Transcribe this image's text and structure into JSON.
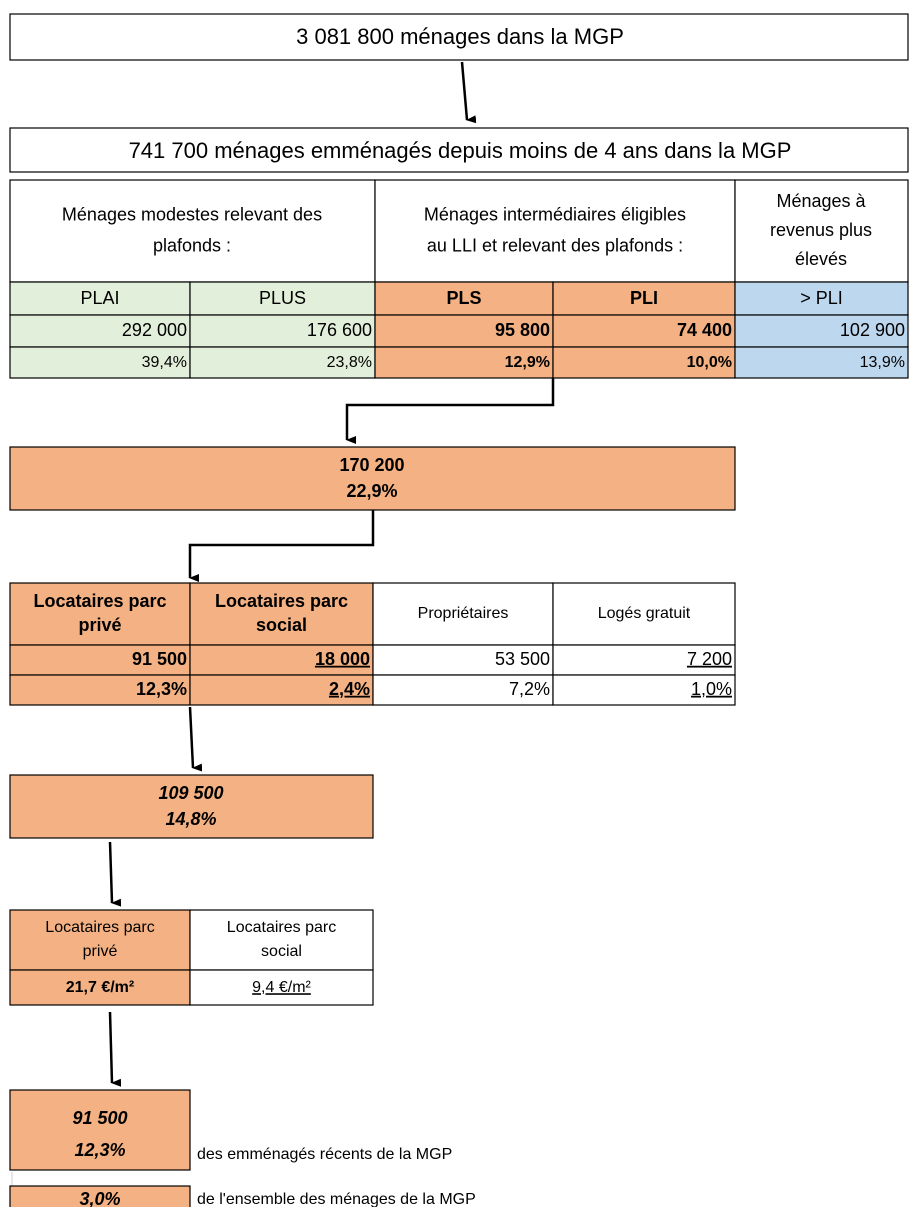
{
  "households_total": "3 081 800 ménages dans la MGP",
  "recent_movers": "741 700 ménages emménagés depuis moins de 4 ans dans la MGP",
  "income_table": {
    "groups": [
      [
        "Ménages modestes relevant des",
        "plafonds :"
      ],
      [
        "Ménages intermédiaires éligibles",
        "au LLI et relevant des plafonds :"
      ],
      [
        "Ménages à",
        "revenus plus",
        "élevés"
      ]
    ],
    "categories": [
      "PLAI",
      "PLUS",
      "PLS",
      "PLI",
      "> PLI"
    ],
    "counts": [
      "292 000",
      "176 600",
      "95 800",
      "74 400",
      "102 900"
    ],
    "shares": [
      "39,4%",
      "23,8%",
      "12,9%",
      "10,0%",
      "13,9%"
    ]
  },
  "pls_pli_total": {
    "count": "170 200",
    "share": "22,9%"
  },
  "tenure_table": {
    "categories": [
      [
        "Locataires parc",
        "privé"
      ],
      [
        "Locataires parc",
        "social"
      ],
      [
        "Propriétaires"
      ],
      [
        "Logés gratuit"
      ]
    ],
    "counts": [
      "91 500",
      "18 000",
      "53 500",
      "7 200"
    ],
    "shares": [
      "12,3%",
      "2,4%",
      "7,2%",
      "1,0%"
    ]
  },
  "tenants_total": {
    "count": "109 500",
    "share": "14,8%"
  },
  "rent_table": {
    "categories": [
      [
        "Locataires parc",
        "privé"
      ],
      [
        "Locataires parc",
        "social"
      ]
    ],
    "rents": [
      "21,7 €/m²",
      "9,4 €/m²"
    ]
  },
  "private_tenants": {
    "count": "91 500",
    "share": "12,3%",
    "note": "des emménagés récents de la MGP"
  },
  "all_households": {
    "share": "3,0%",
    "note": "de l'ensemble des ménages de la MGP"
  }
}
